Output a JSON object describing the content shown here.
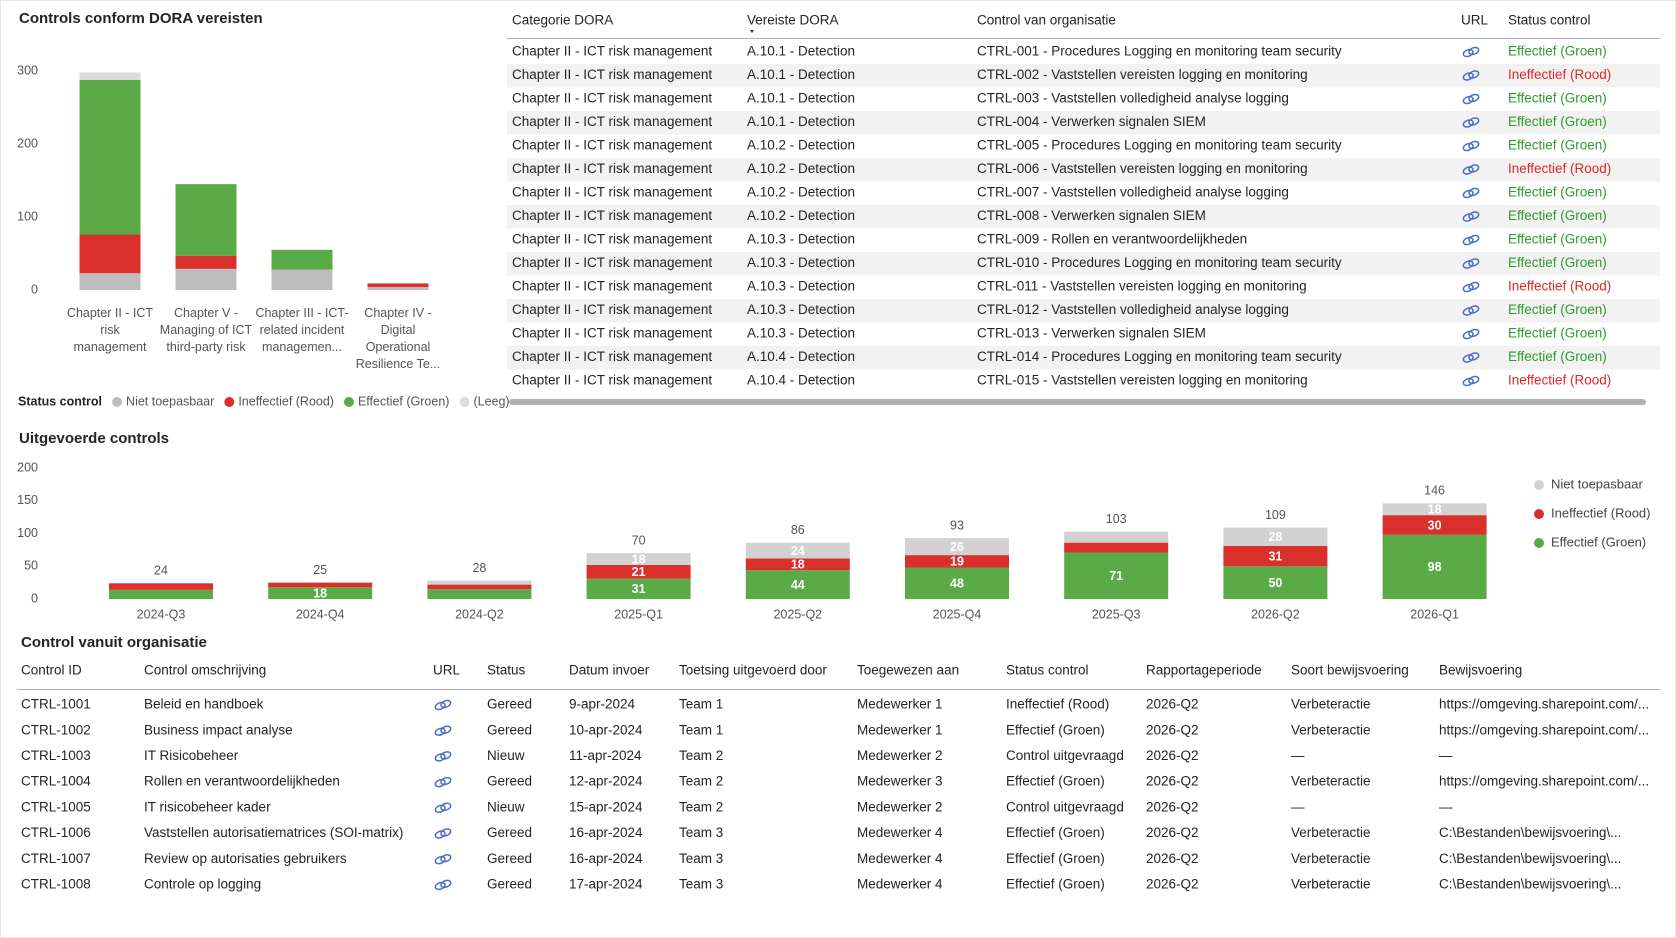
{
  "chart_data": [
    {
      "type": "bar",
      "stacked": true,
      "title": "Controls conform DORA vereisten",
      "categories": [
        "Chapter II - ICT risk management",
        "Chapter V - Managing of ICT third-party risk",
        "Chapter III - ICT-related incident managemen...",
        "Chapter IV - Digital Operational Resilience Te..."
      ],
      "series": [
        {
          "name": "Niet toepasbaar",
          "color": "#bdbdbd",
          "values": [
            23,
            29,
            28,
            4
          ]
        },
        {
          "name": "Ineffectief (Rood)",
          "color": "#d9302c",
          "values": [
            53,
            18,
            0,
            5
          ]
        },
        {
          "name": "Effectief (Groen)",
          "color": "#5aab47",
          "values": [
            212,
            98,
            27,
            0
          ]
        },
        {
          "name": "(Leeg)",
          "color": "#dcdcdc",
          "values": [
            10,
            0,
            0,
            0
          ]
        }
      ],
      "ylim": [
        0,
        300
      ],
      "yticks": [
        0,
        100,
        200,
        300
      ],
      "grid": false,
      "legend_title": "Status control",
      "legend": "bottom"
    },
    {
      "type": "bar",
      "stacked": true,
      "title": "Uitgevoerde controls",
      "categories": [
        "2024-Q3",
        "2024-Q4",
        "2024-Q2",
        "2025-Q1",
        "2025-Q2",
        "2025-Q4",
        "2025-Q3",
        "2026-Q2",
        "2026-Q1"
      ],
      "series": [
        {
          "name": "Effectief (Groen)",
          "color": "#5aab47",
          "values": [
            14,
            18,
            15,
            31,
            44,
            48,
            71,
            50,
            98
          ]
        },
        {
          "name": "Ineffectief (Rood)",
          "color": "#d9302c",
          "values": [
            10,
            7,
            7,
            21,
            18,
            19,
            15,
            31,
            30
          ]
        },
        {
          "name": "Niet toepasbaar",
          "color": "#d2d2d2",
          "values": [
            0,
            0,
            6,
            18,
            24,
            26,
            17,
            28,
            18
          ]
        }
      ],
      "totals": [
        24,
        25,
        28,
        70,
        86,
        93,
        103,
        109,
        146
      ],
      "ylim": [
        0,
        200
      ],
      "yticks": [
        0,
        50,
        100,
        150,
        200
      ],
      "grid": false,
      "data_labels": true,
      "legend": "right"
    }
  ],
  "dora_table": {
    "columns": [
      "Categorie DORA",
      "Vereiste DORA",
      "Control van organisatie",
      "URL",
      "Status control"
    ],
    "status_colors": {
      "Effectief (Groen)": "#2e9a2e",
      "Ineffectief (Rood)": "#e0262b"
    },
    "rows": [
      [
        "Chapter II - ICT risk management",
        "A.10.1 - Detection",
        "CTRL-001 - Procedures Logging en monitoring team security",
        null,
        "Effectief (Groen)"
      ],
      [
        "Chapter II - ICT risk management",
        "A.10.1 - Detection",
        "CTRL-002 - Vaststellen vereisten logging en monitoring",
        null,
        "Ineffectief (Rood)"
      ],
      [
        "Chapter II - ICT risk management",
        "A.10.1 - Detection",
        "CTRL-003 - Vaststellen volledigheid analyse logging",
        null,
        "Effectief (Groen)"
      ],
      [
        "Chapter II - ICT risk management",
        "A.10.1 - Detection",
        "CTRL-004 - Verwerken signalen SIEM",
        null,
        "Effectief (Groen)"
      ],
      [
        "Chapter II - ICT risk management",
        "A.10.2 - Detection",
        "CTRL-005 - Procedures Logging en monitoring team security",
        null,
        "Effectief (Groen)"
      ],
      [
        "Chapter II - ICT risk management",
        "A.10.2 - Detection",
        "CTRL-006 - Vaststellen vereisten logging en monitoring",
        null,
        "Ineffectief (Rood)"
      ],
      [
        "Chapter II - ICT risk management",
        "A.10.2 - Detection",
        "CTRL-007 - Vaststellen volledigheid analyse logging",
        null,
        "Effectief (Groen)"
      ],
      [
        "Chapter II - ICT risk management",
        "A.10.2 - Detection",
        "CTRL-008 - Verwerken signalen SIEM",
        null,
        "Effectief (Groen)"
      ],
      [
        "Chapter II - ICT risk management",
        "A.10.3 - Detection",
        "CTRL-009 - Rollen en verantwoordelijkheden",
        null,
        "Effectief (Groen)"
      ],
      [
        "Chapter II - ICT risk management",
        "A.10.3 - Detection",
        "CTRL-010 - Procedures Logging en monitoring team security",
        null,
        "Effectief (Groen)"
      ],
      [
        "Chapter II - ICT risk management",
        "A.10.3 - Detection",
        "CTRL-011 - Vaststellen vereisten logging en monitoring",
        null,
        "Ineffectief (Rood)"
      ],
      [
        "Chapter II - ICT risk management",
        "A.10.3 - Detection",
        "CTRL-012 - Vaststellen volledigheid analyse logging",
        null,
        "Effectief (Groen)"
      ],
      [
        "Chapter II - ICT risk management",
        "A.10.3 - Detection",
        "CTRL-013 - Verwerken signalen SIEM",
        null,
        "Effectief (Groen)"
      ],
      [
        "Chapter II - ICT risk management",
        "A.10.4 - Detection",
        "CTRL-014 - Procedures Logging en monitoring team security",
        null,
        "Effectief (Groen)"
      ],
      [
        "Chapter II - ICT risk management",
        "A.10.4 - Detection",
        "CTRL-015 - Vaststellen vereisten logging en monitoring",
        null,
        "Ineffectief (Rood)"
      ]
    ]
  },
  "org_table": {
    "title": "Control vanuit organisatie",
    "columns": [
      "Control ID",
      "Control omschrijving",
      "URL",
      "Status",
      "Datum invoer",
      "Toetsing uitgevoerd door",
      "Toegewezen aan",
      "Status control",
      "Rapportageperiode",
      "Soort bewijsvoering",
      "Bewijsvoering"
    ],
    "rows": [
      [
        "CTRL-1001",
        "Beleid en handboek",
        null,
        "Gereed",
        "9-apr-2024",
        "Team 1",
        "Medewerker 1",
        "Ineffectief (Rood)",
        "2026-Q2",
        "Verbeteractie",
        "https://omgeving.sharepoint.com/..."
      ],
      [
        "CTRL-1002",
        "Business impact analyse",
        null,
        "Gereed",
        "10-apr-2024",
        "Team 1",
        "Medewerker 1",
        "Effectief (Groen)",
        "2026-Q2",
        "Verbeteractie",
        "https://omgeving.sharepoint.com/..."
      ],
      [
        "CTRL-1003",
        "IT Risicobeheer",
        null,
        "Nieuw",
        "11-apr-2024",
        "Team 2",
        "Medewerker 2",
        "Control uitgevraagd",
        "2026-Q2",
        "—",
        "—"
      ],
      [
        "CTRL-1004",
        "Rollen en verantwoordelijkheden",
        null,
        "Gereed",
        "12-apr-2024",
        "Team 2",
        "Medewerker 3",
        "Effectief (Groen)",
        "2026-Q2",
        "Verbeteractie",
        "https://omgeving.sharepoint.com/..."
      ],
      [
        "CTRL-1005",
        "IT risicobeheer kader",
        null,
        "Nieuw",
        "15-apr-2024",
        "Team 2",
        "Medewerker 2",
        "Control uitgevraagd",
        "2026-Q2",
        "—",
        "—"
      ],
      [
        "CTRL-1006",
        "Vaststellen autorisatiematrices (SOI-matrix)",
        null,
        "Gereed",
        "16-apr-2024",
        "Team 3",
        "Medewerker 4",
        "Effectief (Groen)",
        "2026-Q2",
        "Verbeteractie",
        "C:\\Bestanden\\bewijsvoering\\..."
      ],
      [
        "CTRL-1007",
        "Review op autorisaties gebruikers",
        null,
        "Gereed",
        "16-apr-2024",
        "Team 3",
        "Medewerker 4",
        "Effectief (Groen)",
        "2026-Q2",
        "Verbeteractie",
        "C:\\Bestanden\\bewijsvoering\\..."
      ],
      [
        "CTRL-1008",
        "Controle op logging",
        null,
        "Gereed",
        "17-apr-2024",
        "Team 3",
        "Medewerker 4",
        "Effectief (Groen)",
        "2026-Q2",
        "Verbeteractie",
        "C:\\Bestanden\\bewijsvoering\\..."
      ]
    ]
  }
}
